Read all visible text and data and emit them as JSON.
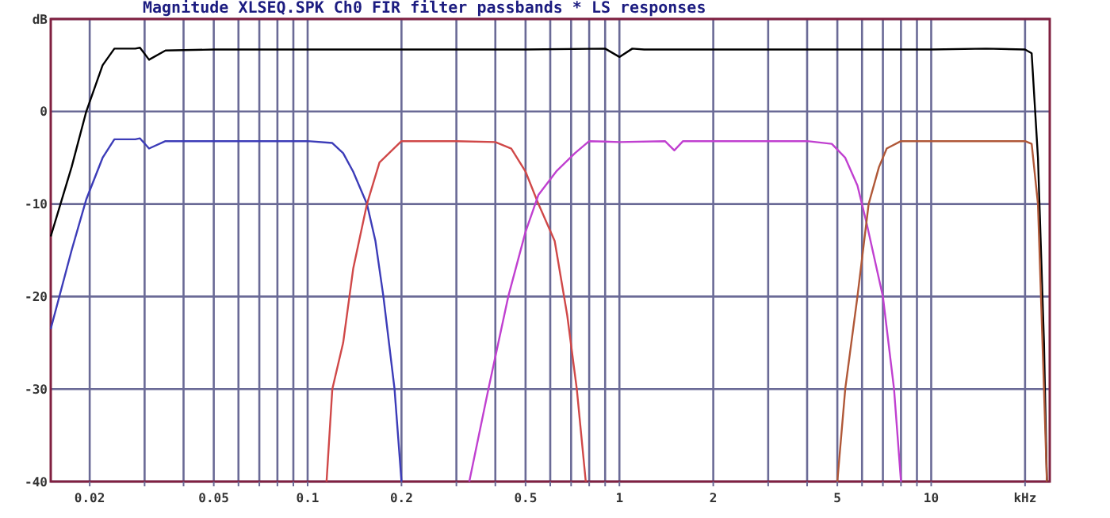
{
  "chart_data": {
    "type": "line",
    "title": "Magnitude XLSEQ.SPK Ch0 FIR filter passbands * LS responses",
    "log": "x",
    "grid": true,
    "line_style": "solid",
    "xlim": [
      0.015,
      24
    ],
    "ylim": [
      -40,
      10
    ],
    "yticks": [
      -40,
      -30,
      -20,
      -10,
      0,
      {
        "value": 10,
        "label": "dB"
      }
    ],
    "xticks": [
      0.02,
      {
        "value": 0.03,
        "label": null
      },
      {
        "value": 0.04,
        "label": null
      },
      0.05,
      {
        "value": 0.06,
        "label": null
      },
      {
        "value": 0.07,
        "label": null
      },
      {
        "value": 0.08,
        "label": null
      },
      {
        "value": 0.09,
        "label": null
      },
      0.1,
      0.2,
      {
        "value": 0.3,
        "label": null
      },
      {
        "value": 0.4,
        "label": null
      },
      0.5,
      {
        "value": 0.6,
        "label": null
      },
      {
        "value": 0.7,
        "label": null
      },
      {
        "value": 0.8,
        "label": null
      },
      {
        "value": 0.9,
        "label": null
      },
      1,
      2,
      {
        "value": 3,
        "label": null
      },
      {
        "value": 4,
        "label": null
      },
      5,
      {
        "value": 6,
        "label": null
      },
      {
        "value": 7,
        "label": null
      },
      {
        "value": 8,
        "label": null
      },
      {
        "value": 9,
        "label": null
      },
      10,
      {
        "value": 20,
        "label": "kHz"
      }
    ],
    "series": [
      {
        "color": "#000000",
        "x": [
          0.015,
          0.0175,
          0.0195,
          0.022,
          0.024,
          0.028,
          0.029,
          0.031,
          0.035,
          0.05,
          0.1,
          0.2,
          0.5,
          0.9,
          1.0,
          1.1,
          1.2,
          2,
          3,
          5,
          10,
          15,
          20,
          21,
          22,
          23,
          23.5
        ],
        "values": [
          -13.5,
          -6,
          0,
          5,
          6.8,
          6.8,
          6.9,
          5.6,
          6.6,
          6.7,
          6.7,
          6.7,
          6.7,
          6.8,
          5.9,
          6.8,
          6.7,
          6.7,
          6.7,
          6.7,
          6.7,
          6.8,
          6.7,
          6.3,
          -5,
          -25,
          -40
        ]
      },
      {
        "color": "#3c3cb8",
        "x": [
          0.015,
          0.0175,
          0.0195,
          0.022,
          0.024,
          0.028,
          0.029,
          0.031,
          0.035,
          0.05,
          0.1,
          0.12,
          0.13,
          0.14,
          0.155,
          0.165,
          0.175,
          0.19,
          0.2
        ],
        "values": [
          -23.5,
          -15,
          -9.5,
          -5,
          -3,
          -3,
          -2.9,
          -4,
          -3.2,
          -3.2,
          -3.2,
          -3.4,
          -4.5,
          -6.5,
          -10,
          -14,
          -20,
          -30,
          -40
        ]
      },
      {
        "color": "#d04848",
        "x": [
          0.115,
          0.12,
          0.13,
          0.14,
          0.155,
          0.17,
          0.2,
          0.3,
          0.4,
          0.45,
          0.5,
          0.55,
          0.62,
          0.68,
          0.73,
          0.78
        ],
        "values": [
          -40,
          -30,
          -25,
          -17,
          -10,
          -5.5,
          -3.2,
          -3.2,
          -3.3,
          -4,
          -6.5,
          -10,
          -14,
          -22,
          -30,
          -40
        ]
      },
      {
        "color": "#c040d0",
        "x": [
          0.33,
          0.38,
          0.44,
          0.5,
          0.55,
          0.63,
          0.72,
          0.8,
          1,
          1.4,
          1.5,
          1.6,
          2,
          3,
          4,
          4.8,
          5.3,
          5.8,
          6.2,
          7,
          7.6,
          8
        ],
        "values": [
          -40,
          -30,
          -20,
          -13,
          -9,
          -6.4,
          -4.5,
          -3.2,
          -3.3,
          -3.2,
          -4.2,
          -3.2,
          -3.2,
          -3.2,
          -3.2,
          -3.5,
          -5,
          -8,
          -12,
          -20,
          -30,
          -40
        ]
      },
      {
        "color": "#b05838",
        "x": [
          5,
          5.3,
          5.8,
          6.3,
          6.8,
          7.2,
          8,
          10,
          15,
          20,
          21,
          22,
          23,
          23.5
        ],
        "values": [
          -40,
          -30,
          -20,
          -10,
          -6,
          -4,
          -3.2,
          -3.2,
          -3.2,
          -3.2,
          -3.5,
          -10,
          -30,
          -40
        ]
      }
    ]
  }
}
